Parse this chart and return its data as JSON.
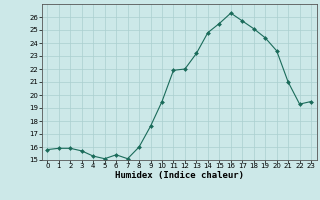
{
  "x": [
    0,
    1,
    2,
    3,
    4,
    5,
    6,
    7,
    8,
    9,
    10,
    11,
    12,
    13,
    14,
    15,
    16,
    17,
    18,
    19,
    20,
    21,
    22,
    23
  ],
  "y": [
    15.8,
    15.9,
    15.9,
    15.7,
    15.3,
    15.1,
    15.4,
    15.1,
    16.0,
    17.6,
    19.5,
    21.9,
    22.0,
    23.2,
    24.8,
    25.5,
    26.3,
    25.7,
    25.1,
    24.4,
    23.4,
    21.0,
    19.3,
    19.5
  ],
  "line_color": "#1a6b5a",
  "marker_color": "#1a6b5a",
  "bg_color": "#cce8e8",
  "grid_color": "#aacfcf",
  "xlabel": "Humidex (Indice chaleur)",
  "ylim": [
    15,
    27
  ],
  "xlim": [
    -0.5,
    23.5
  ],
  "yticks": [
    15,
    16,
    17,
    18,
    19,
    20,
    21,
    22,
    23,
    24,
    25,
    26
  ],
  "xticks": [
    0,
    1,
    2,
    3,
    4,
    5,
    6,
    7,
    8,
    9,
    10,
    11,
    12,
    13,
    14,
    15,
    16,
    17,
    18,
    19,
    20,
    21,
    22,
    23
  ],
  "font_color": "#000000",
  "tick_fontsize": 5.0,
  "label_fontsize": 6.5
}
